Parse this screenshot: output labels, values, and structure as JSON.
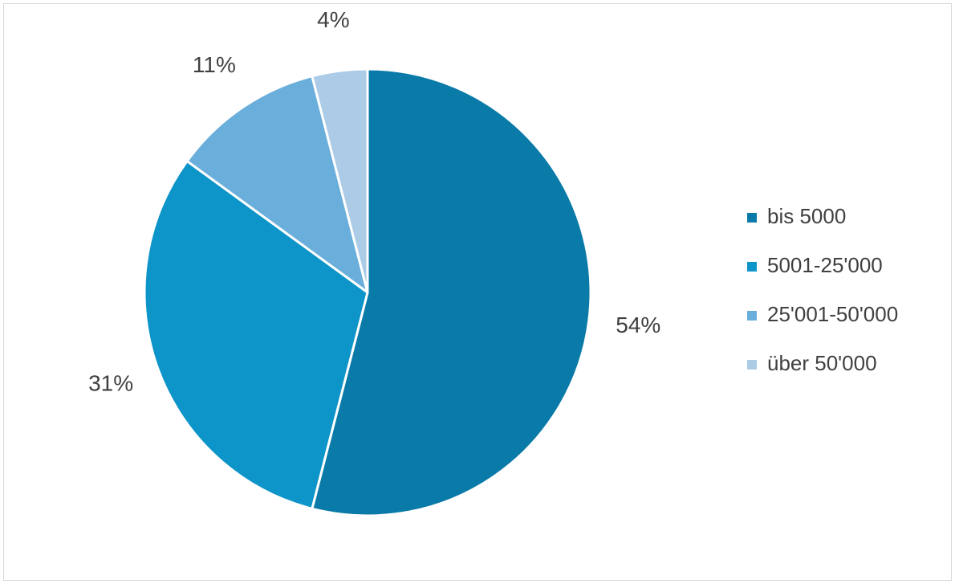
{
  "chart_data": {
    "type": "pie",
    "categories": [
      "bis 5000",
      "5001-25'000",
      "25'001-50'000",
      "über 50'000"
    ],
    "values": [
      54,
      31,
      11,
      4
    ],
    "value_labels": [
      "54%",
      "31%",
      "11%",
      "4%"
    ],
    "colors": [
      "#0a7aa8",
      "#0d94c8",
      "#6aaedb",
      "#abcbe6"
    ],
    "legend": "right"
  }
}
